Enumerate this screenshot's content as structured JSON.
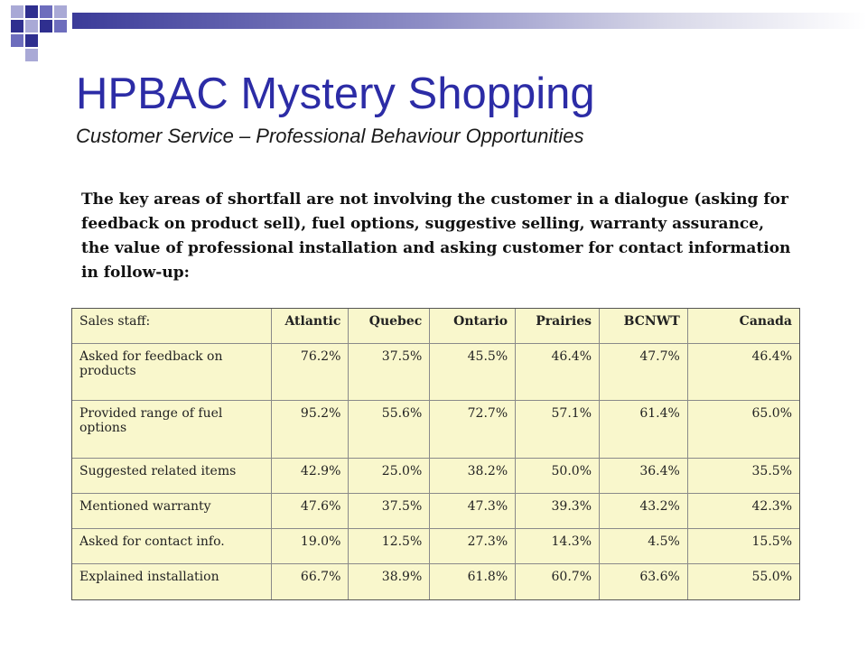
{
  "header": {
    "title": "HPBAC Mystery Shopping",
    "subtitle": "Customer Service – Professional Behaviour Opportunities"
  },
  "body": {
    "paragraph": "The key areas of shortfall are not involving the customer in a dialogue (asking for feedback on product sell), fuel options,  suggestive selling, warranty assurance,  the value of professional installation and asking customer for contact information in follow-up:"
  },
  "table": {
    "header_label": "Sales staff:",
    "columns": [
      "Atlantic",
      "Quebec",
      "Ontario",
      "Prairies",
      "BCNWT",
      "Canada"
    ],
    "rows": [
      {
        "label": "Asked for feedback on products",
        "values": [
          "76.2%",
          "37.5%",
          "45.5%",
          "46.4%",
          "47.7%",
          "46.4%"
        ]
      },
      {
        "label": "Provided range of fuel options",
        "values": [
          "95.2%",
          "55.6%",
          "72.7%",
          "57.1%",
          "61.4%",
          "65.0%"
        ]
      },
      {
        "label": "Suggested related items",
        "values": [
          "42.9%",
          "25.0%",
          "38.2%",
          "50.0%",
          "36.4%",
          "35.5%"
        ]
      },
      {
        "label": "Mentioned warranty",
        "values": [
          "47.6%",
          "37.5%",
          "47.3%",
          "39.3%",
          "43.2%",
          "42.3%"
        ]
      },
      {
        "label": "Asked for contact info.",
        "values": [
          "19.0%",
          "12.5%",
          "27.3%",
          "14.3%",
          "4.5%",
          "15.5%"
        ]
      },
      {
        "label": "Explained installation",
        "values": [
          "66.7%",
          "38.9%",
          "61.8%",
          "60.7%",
          "63.6%",
          "55.0%"
        ]
      }
    ]
  },
  "colors": {
    "title": "#2c2ca6",
    "table_bg": "#f9f7cc",
    "accent_dark": "#2f2f8f",
    "accent_light": "#a9a9d6"
  }
}
